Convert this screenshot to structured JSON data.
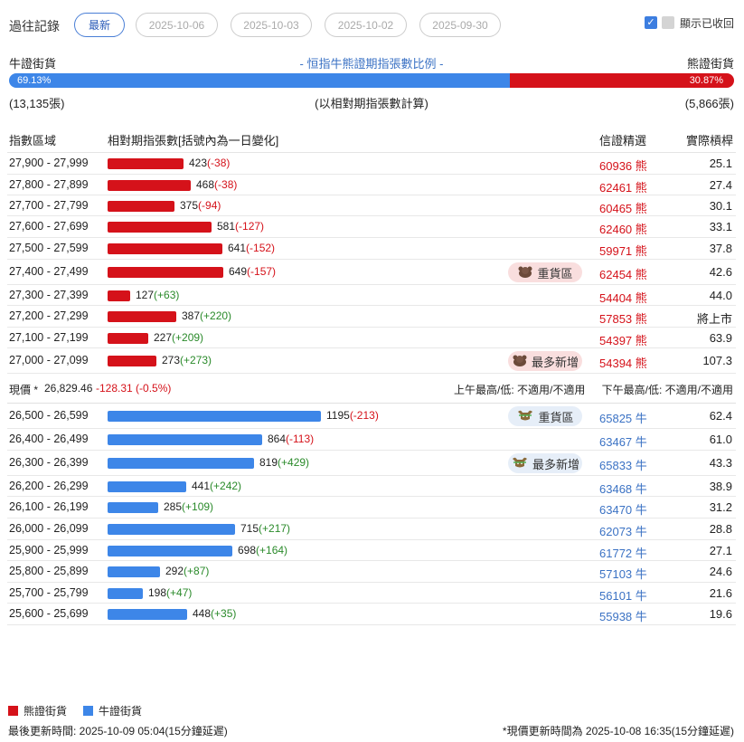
{
  "history": {
    "label": "過往記錄",
    "chips": [
      "最新",
      "2025-10-06",
      "2025-10-03",
      "2025-10-02",
      "2025-09-30"
    ],
    "show_recovered_label": "顯示已收回",
    "show_recovered_checked": true
  },
  "ratio": {
    "bull_label": "牛證街貨",
    "title": "- 恒指牛熊證期指張數比例 -",
    "bear_label": "熊證街貨",
    "bull_pct": "69.13%",
    "bear_pct": "30.87%",
    "bull_fraction": 0.6913,
    "bull_count": "(13,135張)",
    "note": "(以相對期指張數計算)",
    "bear_count": "(5,866張)"
  },
  "table": {
    "headers": {
      "range": "指數區域",
      "contracts": "相對期指張數[括號內為一日變化]",
      "warrant": "信證精選",
      "leverage": "實際槓桿"
    },
    "bear_rows": [
      {
        "range": "27,900 - 27,999",
        "count": 423,
        "count_text": "423",
        "change": "(-38)",
        "warrant": "60936 熊",
        "leverage": "25.1",
        "tag": ""
      },
      {
        "range": "27,800 - 27,899",
        "count": 468,
        "count_text": "468",
        "change": "(-38)",
        "warrant": "62461 熊",
        "leverage": "27.4",
        "tag": ""
      },
      {
        "range": "27,700 - 27,799",
        "count": 375,
        "count_text": "375",
        "change": "(-94)",
        "warrant": "60465 熊",
        "leverage": "30.1",
        "tag": ""
      },
      {
        "range": "27,600 - 27,699",
        "count": 581,
        "count_text": "581",
        "change": "(-127)",
        "warrant": "62460 熊",
        "leverage": "33.1",
        "tag": ""
      },
      {
        "range": "27,500 - 27,599",
        "count": 641,
        "count_text": "641",
        "change": "(-152)",
        "warrant": "59971 熊",
        "leverage": "37.8",
        "tag": ""
      },
      {
        "range": "27,400 - 27,499",
        "count": 649,
        "count_text": "649",
        "change": "(-157)",
        "warrant": "62454 熊",
        "leverage": "42.6",
        "tag": "重貨區"
      },
      {
        "range": "27,300 - 27,399",
        "count": 127,
        "count_text": "127",
        "change": "(+63)",
        "warrant": "54404 熊",
        "leverage": "44.0",
        "tag": ""
      },
      {
        "range": "27,200 - 27,299",
        "count": 387,
        "count_text": "387",
        "change": "(+220)",
        "warrant": "57853 熊",
        "leverage": "將上市",
        "tag": ""
      },
      {
        "range": "27,100 - 27,199",
        "count": 227,
        "count_text": "227",
        "change": "(+209)",
        "warrant": "54397 熊",
        "leverage": "63.9",
        "tag": ""
      },
      {
        "range": "27,000 - 27,099",
        "count": 273,
        "count_text": "273",
        "change": "(+273)",
        "warrant": "54394 熊",
        "leverage": "107.3",
        "tag": "最多新增"
      }
    ],
    "price": {
      "label": "現價 *",
      "value": "26,829.46",
      "change": "-128.31 (-0.5%)",
      "am": "上午最高/低: 不適用/不適用",
      "pm": "下午最高/低: 不適用/不適用"
    },
    "bull_rows": [
      {
        "range": "26,500 - 26,599",
        "count": 1195,
        "count_text": "1195",
        "change": "(-213)",
        "warrant": "65825 牛",
        "leverage": "62.4",
        "tag": "重貨區"
      },
      {
        "range": "26,400 - 26,499",
        "count": 864,
        "count_text": "864",
        "change": "(-113)",
        "warrant": "63467 牛",
        "leverage": "61.0",
        "tag": ""
      },
      {
        "range": "26,300 - 26,399",
        "count": 819,
        "count_text": "819",
        "change": "(+429)",
        "warrant": "65833 牛",
        "leverage": "43.3",
        "tag": "最多新增"
      },
      {
        "range": "26,200 - 26,299",
        "count": 441,
        "count_text": "441",
        "change": "(+242)",
        "warrant": "63468 牛",
        "leverage": "38.9",
        "tag": ""
      },
      {
        "range": "26,100 - 26,199",
        "count": 285,
        "count_text": "285",
        "change": "(+109)",
        "warrant": "63470 牛",
        "leverage": "31.2",
        "tag": ""
      },
      {
        "range": "26,000 - 26,099",
        "count": 715,
        "count_text": "715",
        "change": "(+217)",
        "warrant": "62073 牛",
        "leverage": "28.8",
        "tag": ""
      },
      {
        "range": "25,900 - 25,999",
        "count": 698,
        "count_text": "698",
        "change": "(+164)",
        "warrant": "61772 牛",
        "leverage": "27.1",
        "tag": ""
      },
      {
        "range": "25,800 - 25,899",
        "count": 292,
        "count_text": "292",
        "change": "(+87)",
        "warrant": "57103 牛",
        "leverage": "24.6",
        "tag": ""
      },
      {
        "range": "25,700 - 25,799",
        "count": 198,
        "count_text": "198",
        "change": "(+47)",
        "warrant": "56101 牛",
        "leverage": "21.6",
        "tag": ""
      },
      {
        "range": "25,600 - 25,699",
        "count": 448,
        "count_text": "448",
        "change": "(+35)",
        "warrant": "55938 牛",
        "leverage": "19.6",
        "tag": ""
      }
    ]
  },
  "legend": {
    "bear": "熊證街貨",
    "bull": "牛證街貨"
  },
  "footer": {
    "last_update": "最後更新時間: 2025-10-09 05:04(15分鐘延遲)",
    "price_update": "*現價更新時間為 2025-10-08 16:35(15分鐘延遲)"
  },
  "colors": {
    "bear": "#d5121a",
    "bull": "#3d86e8",
    "positive": "#2a8a2a"
  },
  "icons": {
    "bear_tag": "bear-icon",
    "bull_tag": "bull-icon",
    "checkbox": "checkbox-checked-icon"
  }
}
